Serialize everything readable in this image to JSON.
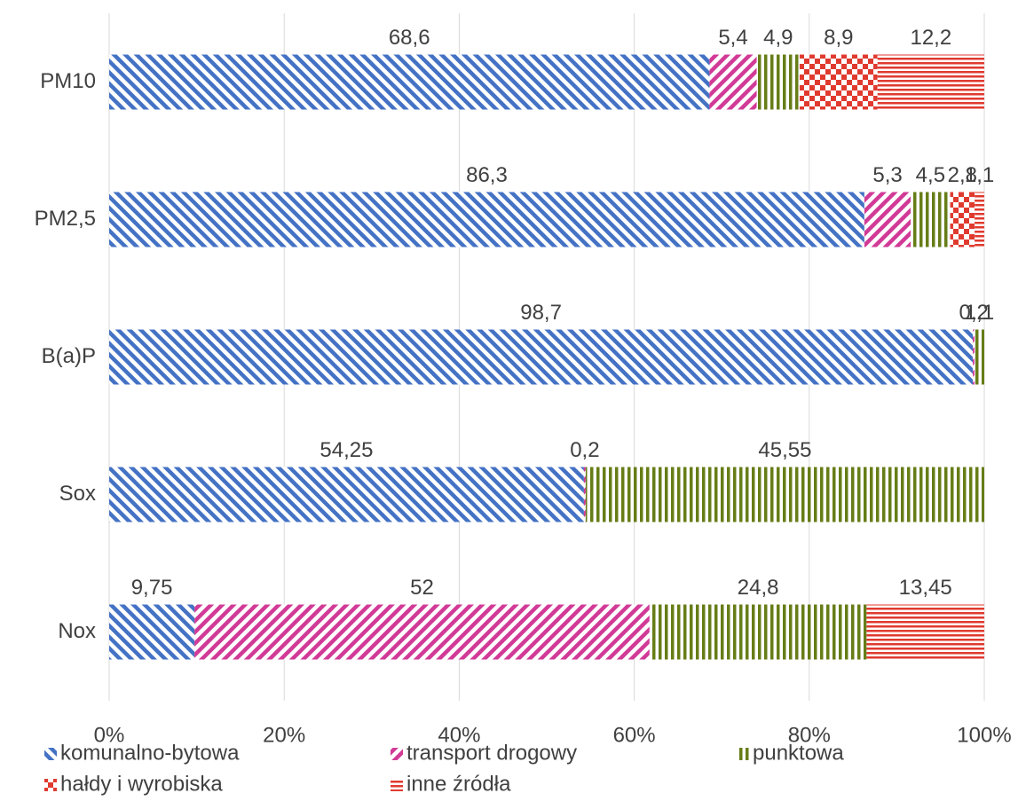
{
  "chart_data": {
    "type": "stacked-bar-horizontal",
    "categories": [
      "PM10",
      "PM2,5",
      "B(a)P",
      "Sox",
      "Nox"
    ],
    "xlim": [
      0,
      100
    ],
    "xticks": [
      {
        "value": 0,
        "label": "0%"
      },
      {
        "value": 20,
        "label": "20%"
      },
      {
        "value": 40,
        "label": "40%"
      },
      {
        "value": 60,
        "label": "60%"
      },
      {
        "value": 80,
        "label": "80%"
      },
      {
        "value": 100,
        "label": "100%"
      }
    ],
    "grid": true,
    "legend": "bottom",
    "series": [
      {
        "name": "komunalno-bytowa",
        "color": "#4472c4",
        "pattern": "diagonal-down",
        "values": [
          68.6,
          86.3,
          98.7,
          54.25,
          9.75
        ],
        "value_labels": [
          "68,6",
          "86,3",
          "98,7",
          "54,25",
          "9,75"
        ]
      },
      {
        "name": "transport drogowy",
        "color": "#d13a97",
        "pattern": "diagonal-up",
        "values": [
          5.4,
          5.3,
          0.2,
          0.2,
          52
        ],
        "value_labels": [
          "5,4",
          "5,3",
          "0,2",
          "0,2",
          "52"
        ]
      },
      {
        "name": "punktowa",
        "color": "#667d17",
        "pattern": "vertical",
        "values": [
          4.9,
          4.5,
          1.1,
          45.55,
          24.8
        ],
        "value_labels": [
          "4,9",
          "4,5",
          "1,1",
          "45,55",
          "24,8"
        ]
      },
      {
        "name": "hałdy i wyrobiska",
        "color": "#e03a2f",
        "pattern": "checker",
        "values": [
          8.9,
          2.8,
          null,
          null,
          null
        ],
        "value_labels": [
          "8,9",
          "2,8",
          null,
          null,
          null
        ]
      },
      {
        "name": "inne źródła",
        "color": "#e03a2f",
        "pattern": "horizontal",
        "values": [
          12.2,
          1.1,
          null,
          null,
          13.45
        ],
        "value_labels": [
          "12,2",
          "1,1",
          null,
          null,
          "13,45"
        ]
      }
    ]
  }
}
